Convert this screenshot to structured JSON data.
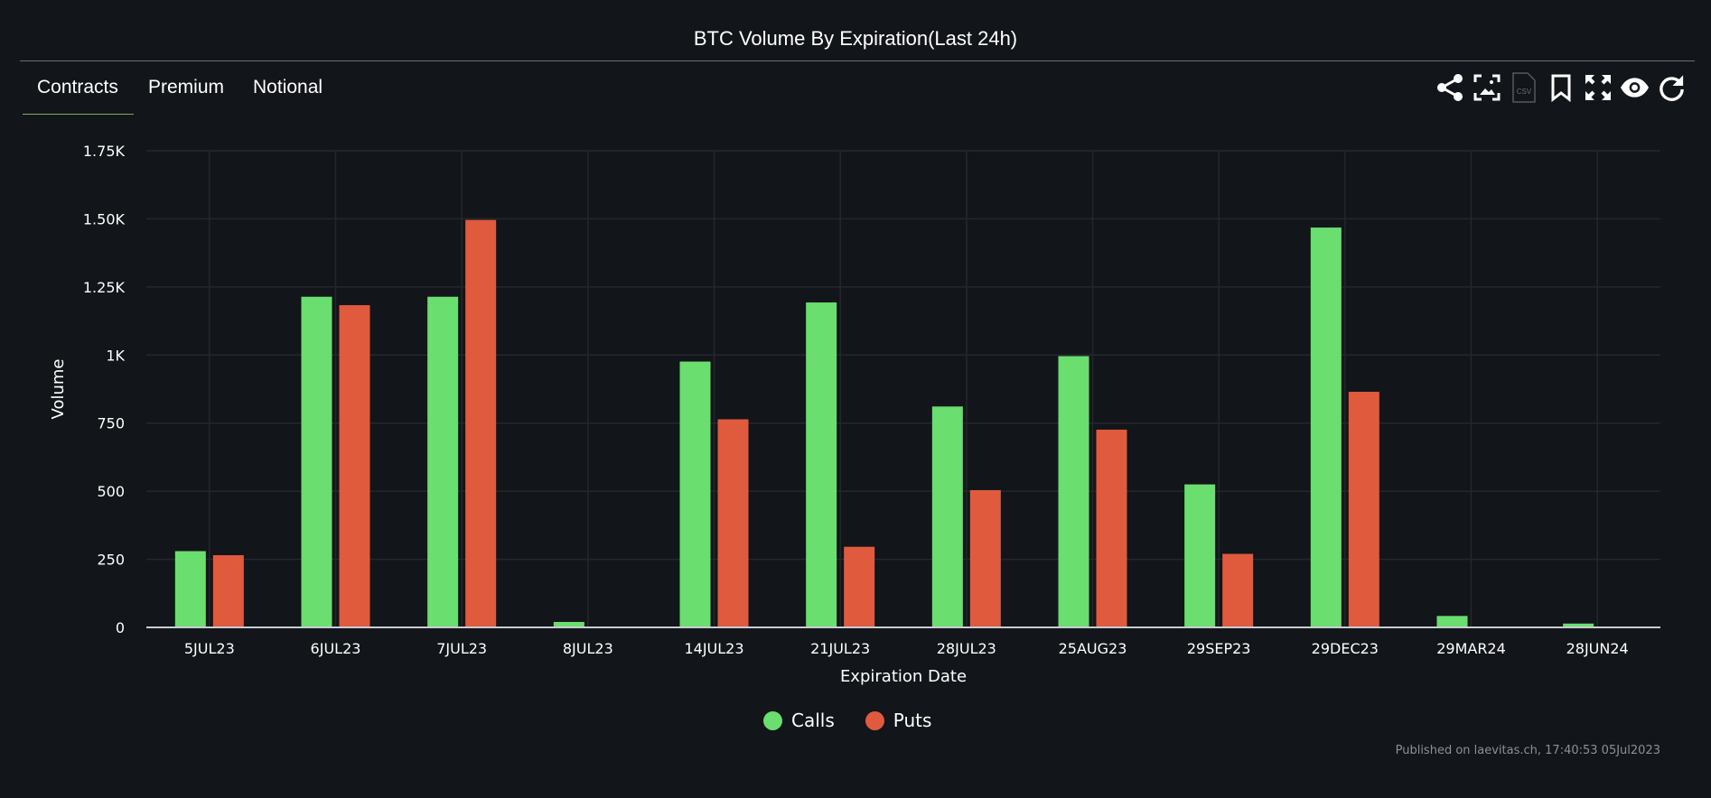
{
  "title": "BTC Volume By Expiration(Last 24h)",
  "tabs": [
    {
      "label": "Contracts",
      "active": true
    },
    {
      "label": "Premium",
      "active": false
    },
    {
      "label": "Notional",
      "active": false
    }
  ],
  "toolbar_icons": [
    "share-icon",
    "image-download-icon",
    "csv-download-icon",
    "bookmark-icon",
    "fullscreen-icon",
    "eye-icon",
    "refresh-icon"
  ],
  "toolbar_csv_label": "CSV",
  "published": "Published on laevitas.ch, 17:40:53 05Jul2023",
  "chart_data": {
    "type": "bar",
    "xlabel": "Expiration Date",
    "ylabel": "Volume",
    "ylim": [
      0,
      1750
    ],
    "yticks": [
      0,
      250,
      500,
      750,
      1000,
      1250,
      1500,
      1750
    ],
    "ytick_labels": [
      "0",
      "250",
      "500",
      "750",
      "1K",
      "1.25K",
      "1.50K",
      "1.75K"
    ],
    "grid": true,
    "legend": "bottom",
    "categories": [
      "5JUL23",
      "6JUL23",
      "7JUL23",
      "8JUL23",
      "14JUL23",
      "21JUL23",
      "28JUL23",
      "25AUG23",
      "29SEP23",
      "29DEC23",
      "29MAR24",
      "28JUN24"
    ],
    "series": [
      {
        "name": "Calls",
        "color": "#6ade6f",
        "values": [
          280,
          1214,
          1214,
          20,
          976,
          1193,
          811,
          996,
          525,
          1468,
          42,
          14
        ]
      },
      {
        "name": "Puts",
        "color": "#e05a3e",
        "values": [
          265,
          1183,
          1496,
          3,
          764,
          296,
          504,
          726,
          270,
          865,
          0,
          3
        ]
      }
    ]
  },
  "colors": {
    "background": "#121519",
    "grid": "#24282d",
    "tab_underline": "#7fa86b"
  }
}
